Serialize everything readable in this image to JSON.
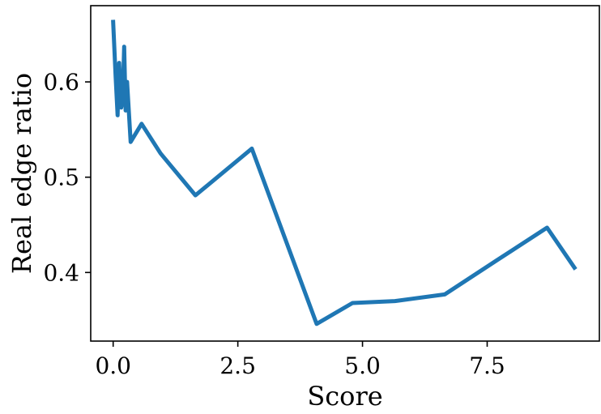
{
  "chart_data": {
    "type": "line",
    "xlabel": "Score",
    "ylabel": "Real edge ratio",
    "xlim": [
      -0.45,
      9.75
    ],
    "ylim": [
      0.328,
      0.68
    ],
    "xticks": [
      0.0,
      2.5,
      5.0,
      7.5
    ],
    "xtick_labels": [
      "0.0",
      "2.5",
      "5.0",
      "7.5"
    ],
    "yticks": [
      0.4,
      0.5,
      0.6
    ],
    "ytick_labels": [
      "0.4",
      "0.5",
      "0.6"
    ],
    "grid": false,
    "series": [
      {
        "color": "#1f77b4",
        "x": [
          0.0,
          0.05,
          0.09,
          0.12,
          0.16,
          0.19,
          0.22,
          0.25,
          0.28,
          0.35,
          0.57,
          0.95,
          1.65,
          2.78,
          4.08,
          4.8,
          5.65,
          6.65,
          7.7,
          8.7,
          9.25
        ],
        "y": [
          0.663,
          0.605,
          0.565,
          0.62,
          0.573,
          0.58,
          0.637,
          0.57,
          0.6,
          0.537,
          0.556,
          0.525,
          0.481,
          0.53,
          0.346,
          0.368,
          0.37,
          0.377,
          0.413,
          0.447,
          0.405
        ]
      }
    ]
  }
}
